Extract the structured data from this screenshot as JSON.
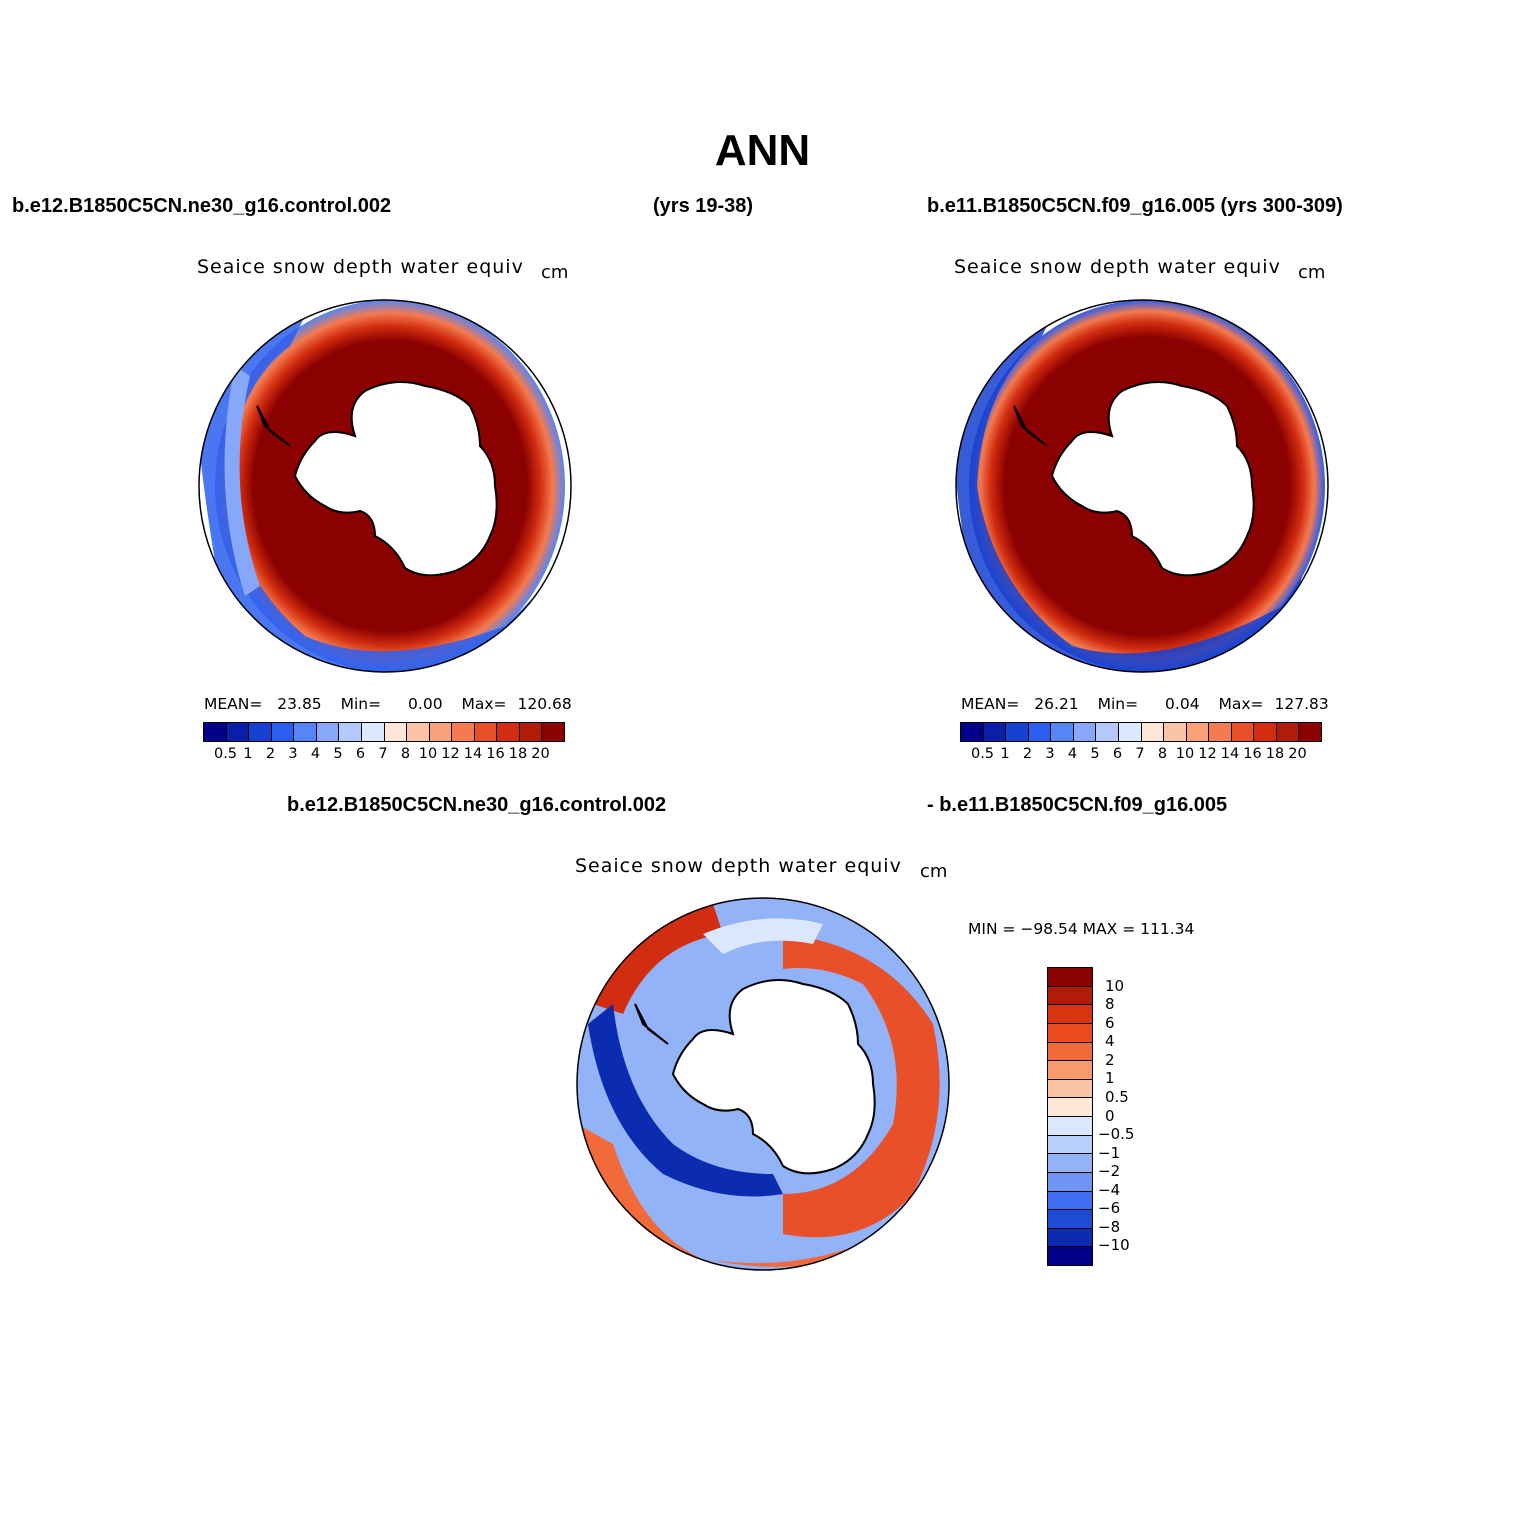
{
  "title": "ANN",
  "header": {
    "left_run": "b.e12.B1850C5CN.ne30_g16.control.002",
    "left_years": "(yrs 19-38)",
    "right_run": "b.e11.B1850C5CN.f09_g16.005 (yrs 300-309)"
  },
  "panels": [
    {
      "variable": "Seaice snow depth water equiv",
      "units": "cm",
      "stats": {
        "mean_label": "MEAN=",
        "mean": "23.85",
        "min_label": "Min=",
        "min": "0.00",
        "max_label": "Max=",
        "max": "120.68"
      }
    },
    {
      "variable": "Seaice snow depth water equiv",
      "units": "cm",
      "stats": {
        "mean_label": "MEAN=",
        "mean": "26.21",
        "min_label": "Min=",
        "min": "0.04",
        "max_label": "Max=",
        "max": "127.83"
      }
    }
  ],
  "diff": {
    "left_label": "b.e12.B1850C5CN.ne30_g16.control.002",
    "right_label": "- b.e11.B1850C5CN.f09_g16.005",
    "variable": "Seaice snow depth water equiv",
    "units": "cm",
    "minmax": "MIN = −98.54 MAX = 111.34"
  },
  "colorbar_abs": {
    "labels": [
      "0.5",
      "1",
      "2",
      "3",
      "4",
      "5",
      "6",
      "7",
      "8",
      "10",
      "12",
      "14",
      "16",
      "18",
      "20"
    ],
    "colors": [
      "#00008b",
      "#0a1fa8",
      "#1540d0",
      "#2a5ef0",
      "#5585f6",
      "#87a8fa",
      "#b4c9fb",
      "#dbe7fd",
      "#fde6d6",
      "#fcc4a6",
      "#f9a27a",
      "#f47a4f",
      "#e9502a",
      "#d22d10",
      "#b01c08",
      "#8b0000"
    ]
  },
  "colorbar_diff": {
    "labels": [
      "10",
      "8",
      "6",
      "4",
      "2",
      "1",
      "0.5",
      "0",
      "−0.5",
      "−1",
      "−2",
      "−4",
      "−6",
      "−8",
      "−10"
    ],
    "colors": [
      "#8b0000",
      "#b01c08",
      "#d93410",
      "#ec4a1e",
      "#f26a3a",
      "#f89a6c",
      "#fcc4a6",
      "#fde8d8",
      "#dbe7fd",
      "#b8cffb",
      "#93b3f8",
      "#6e95f3",
      "#3f6ef0",
      "#1f4ad6",
      "#0b2cb0",
      "#00008b"
    ]
  }
}
